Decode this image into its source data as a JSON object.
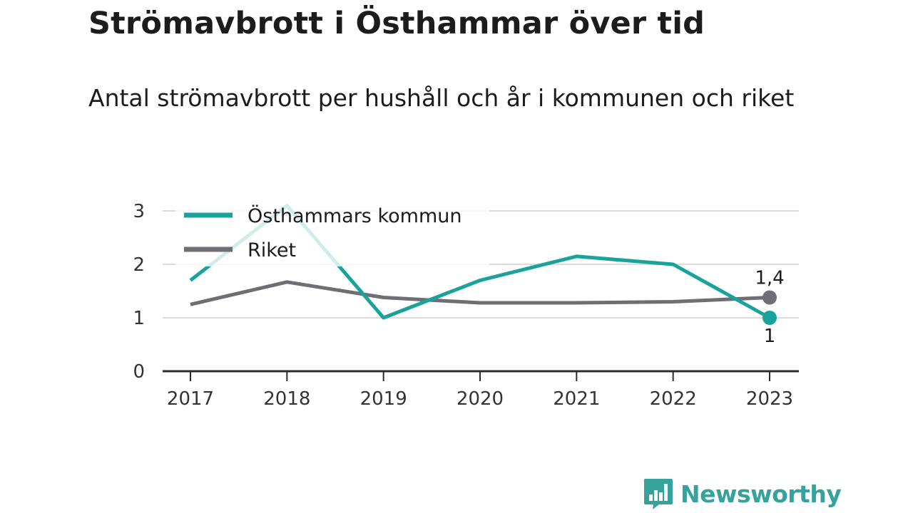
{
  "title": "Strömavbrott i Östhammar över tid",
  "subtitle": "Antal strömavbrott per hushåll och år i kommunen och riket",
  "brand": {
    "name": "Newsworthy",
    "icon": "bar-chart-speech-bubble-icon",
    "color": "#35a39b"
  },
  "chart_data": {
    "type": "line",
    "x": [
      "2017",
      "2018",
      "2019",
      "2020",
      "2021",
      "2022",
      "2023"
    ],
    "series": [
      {
        "name": "Östhammars kommun",
        "values": [
          1.7,
          3.1,
          1.0,
          1.7,
          2.15,
          2.0,
          1.0
        ],
        "color": "#1aa39a",
        "end_label": "1"
      },
      {
        "name": "Riket",
        "values": [
          1.25,
          1.67,
          1.38,
          1.28,
          1.28,
          1.3,
          1.38
        ],
        "color": "#6e6e73",
        "end_label": "1,4"
      }
    ],
    "yticks": [
      "0",
      "1",
      "2",
      "3"
    ],
    "ylim": [
      0,
      3
    ],
    "grid": true,
    "legend_position": "top-left"
  }
}
